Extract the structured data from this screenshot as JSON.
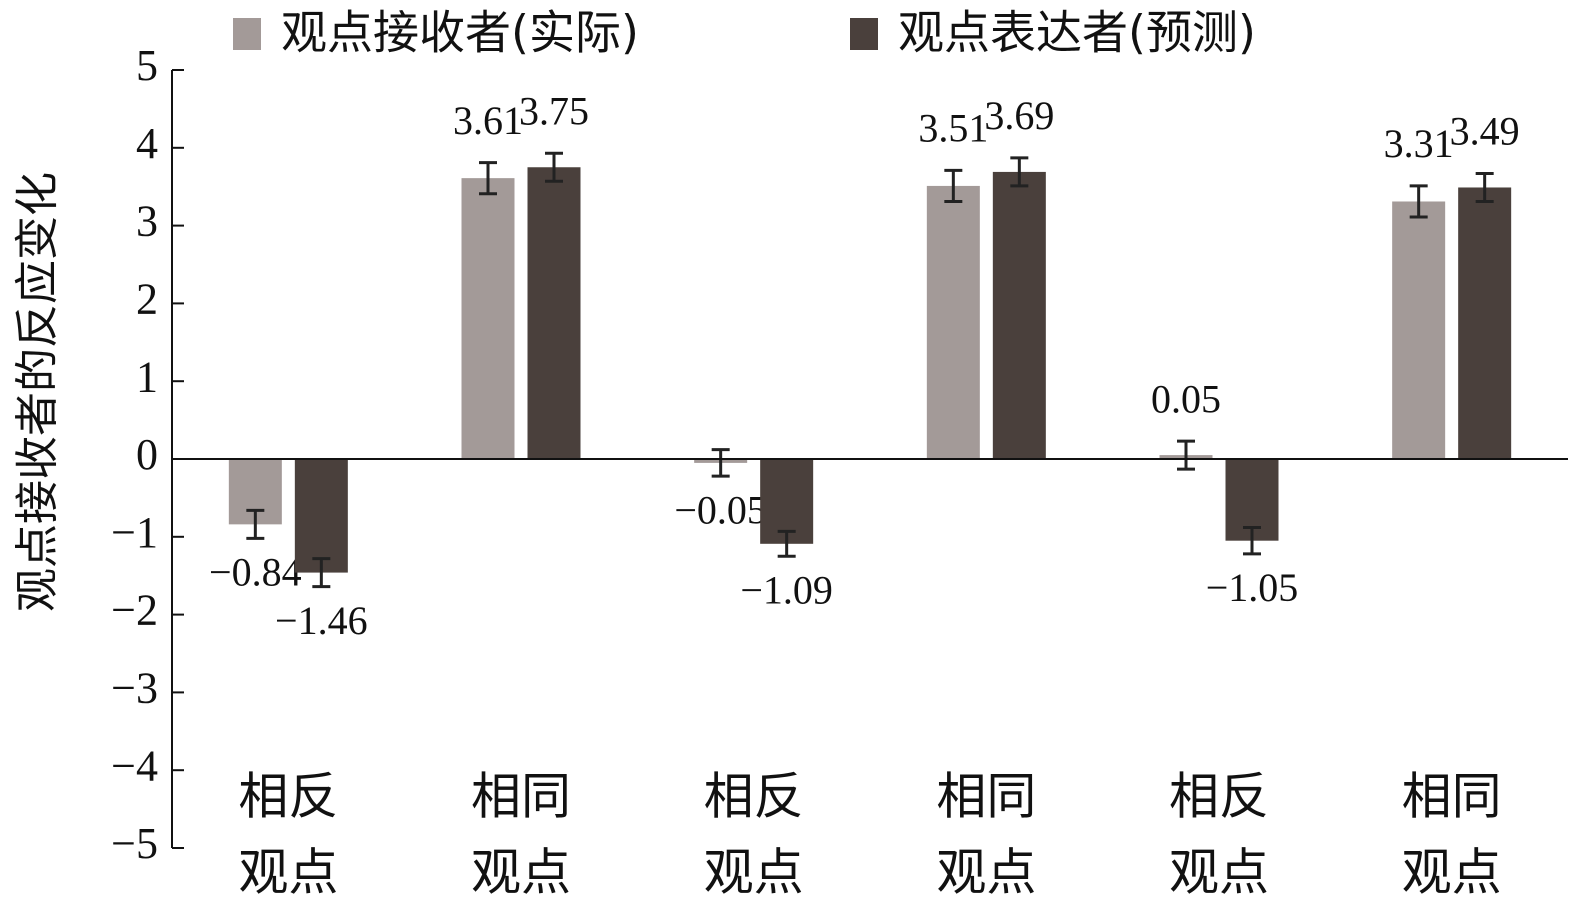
{
  "chart_data": {
    "type": "bar",
    "y_label": "观点接收者的反应变化",
    "categories": [
      [
        "相反",
        "观点"
      ],
      [
        "相同",
        "观点"
      ],
      [
        "相反",
        "观点"
      ],
      [
        "相同",
        "观点"
      ],
      [
        "相反",
        "观点"
      ],
      [
        "相同",
        "观点"
      ]
    ],
    "series": [
      {
        "name": "观点接收者(实际)",
        "color": "#a39a98",
        "values": [
          -0.84,
          3.61,
          -0.05,
          3.51,
          0.05,
          3.31
        ],
        "value_labels": [
          "−0.84",
          "3.61",
          "−0.05",
          "3.51",
          "0.05",
          "3.31"
        ],
        "errors": [
          0.18,
          0.2,
          0.17,
          0.2,
          0.18,
          0.2
        ]
      },
      {
        "name": "观点表达者(预测)",
        "color": "#4a403c",
        "values": [
          -1.46,
          3.75,
          -1.09,
          3.69,
          -1.05,
          3.49
        ],
        "value_labels": [
          "−1.46",
          "3.75",
          "−1.09",
          "3.69",
          "−1.05",
          "3.49"
        ],
        "errors": [
          0.18,
          0.18,
          0.16,
          0.18,
          0.17,
          0.18
        ]
      }
    ],
    "ylim": [
      -5,
      5
    ],
    "yticks": [
      {
        "value": -5,
        "label": "−5"
      },
      {
        "value": -4,
        "label": "−4"
      },
      {
        "value": -3,
        "label": "−3"
      },
      {
        "value": -2,
        "label": "−2"
      },
      {
        "value": -1,
        "label": "−1"
      },
      0,
      1,
      2,
      3,
      4,
      5
    ]
  }
}
